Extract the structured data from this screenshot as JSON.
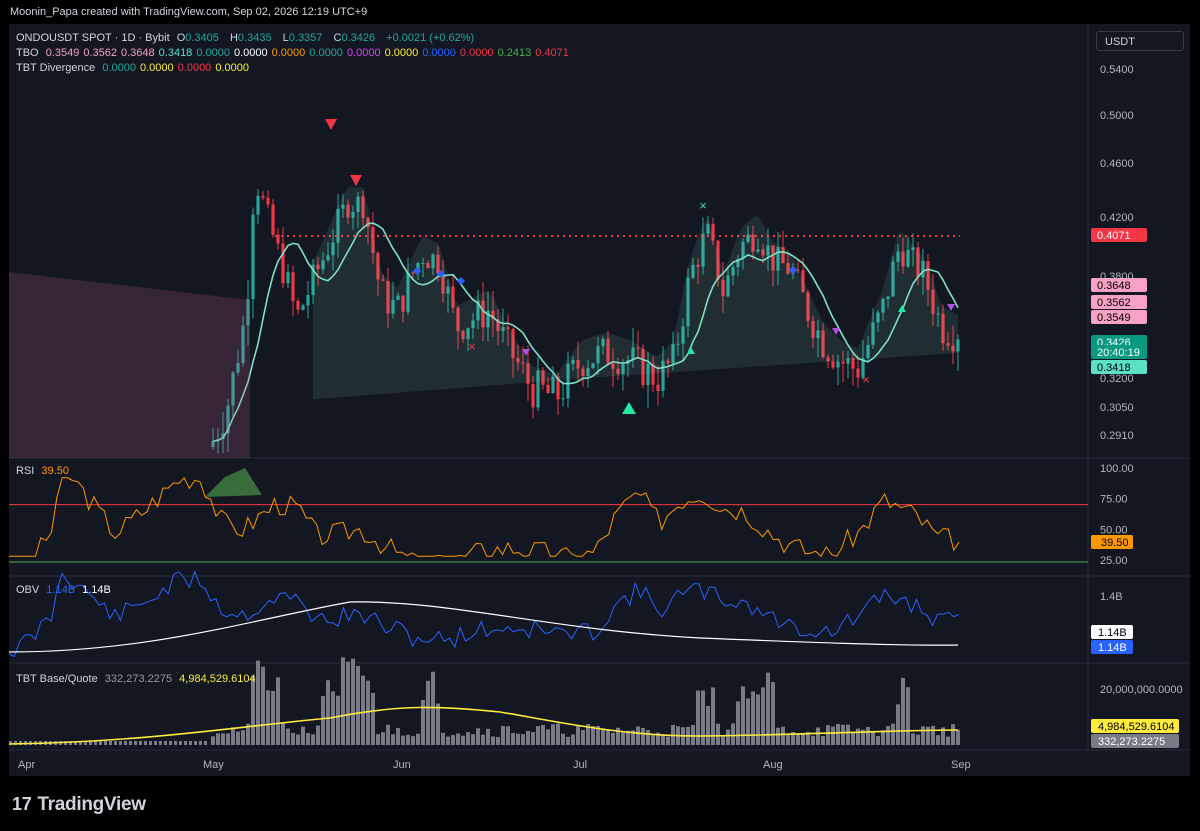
{
  "credit": "Moonin_Papa created with TradingView.com, Sep 02, 2026 12:19 UTC+9",
  "symbol_line": {
    "symbol": "ONDOUSDT SPOT · 1D · Bybit",
    "o_label": "O",
    "o": "0.3405",
    "h_label": "H",
    "h": "0.3435",
    "l_label": "L",
    "l": "0.3357",
    "c_label": "C",
    "c": "0.3426",
    "change": "+0.0021 (+0.62%)"
  },
  "tbo_line": {
    "name": "TBO",
    "values": [
      {
        "v": "0.3549",
        "color": "#f7a1c4"
      },
      {
        "v": "0.3562",
        "color": "#f7a1c4"
      },
      {
        "v": "0.3648",
        "color": "#f7a1c4"
      },
      {
        "v": "0.3418",
        "color": "#5ce1c4"
      },
      {
        "v": "0.0000",
        "color": "#26a69a"
      },
      {
        "v": "0.0000",
        "color": "#ffffff"
      },
      {
        "v": "0.0000",
        "color": "#ff9800"
      },
      {
        "v": "0.0000",
        "color": "#26a69a"
      },
      {
        "v": "0.0000",
        "color": "#e040fb"
      },
      {
        "v": "0.0000",
        "color": "#ffeb3b"
      },
      {
        "v": "0.0000",
        "color": "#2962ff"
      },
      {
        "v": "0.0000",
        "color": "#f23645"
      },
      {
        "v": "0.2413",
        "color": "#4caf50"
      },
      {
        "v": "0.4071",
        "color": "#f23645"
      }
    ]
  },
  "tbt_div_line": {
    "name": "TBT Divergence",
    "values": [
      {
        "v": "0.0000",
        "color": "#26a69a"
      },
      {
        "v": "0.0000",
        "color": "#ffeb3b"
      },
      {
        "v": "0.0000",
        "color": "#f23645"
      },
      {
        "v": "0.0000",
        "color": "#ffeb3b"
      }
    ]
  },
  "currency_button": "USDT",
  "price_axis_ticks": [
    "0.5400",
    "0.5000",
    "0.4600",
    "0.4200",
    "0.3800",
    "0.3200",
    "0.3050",
    "0.2910"
  ],
  "price_labels": [
    {
      "text": "0.4071",
      "bg": "#f23645",
      "fg": "#ffffff"
    },
    {
      "text": "0.3648",
      "bg": "#f7a1c4",
      "fg": "#000000"
    },
    {
      "text": "0.3562",
      "bg": "#f7a1c4",
      "fg": "#000000"
    },
    {
      "text": "0.3549",
      "bg": "#f7a1c4",
      "fg": "#000000"
    },
    {
      "text": "0.3426",
      "bg": "#089981",
      "fg": "#ffffff"
    },
    {
      "text": "20:40:19",
      "bg": "#089981",
      "fg": "#ffffff"
    },
    {
      "text": "0.3418",
      "bg": "#5ce1c4",
      "fg": "#000000"
    }
  ],
  "rsi": {
    "name": "RSI",
    "value": "39.50",
    "ticks": [
      "100.00",
      "75.00",
      "50.00",
      "25.00"
    ],
    "label": "39.50",
    "label_bg": "#ff9800"
  },
  "obv": {
    "name": "OBV",
    "v1": "1.14B",
    "v2": "1.14B",
    "ticks": [
      "1.4B"
    ],
    "labels": [
      {
        "text": "1.14B",
        "bg": "#ffffff",
        "fg": "#000000"
      },
      {
        "text": "1.14B",
        "bg": "#2962ff",
        "fg": "#ffffff"
      }
    ]
  },
  "tbt_bq": {
    "name": "TBT Base/Quote",
    "v1": "332,273.2275",
    "v2": "4,984,529.6104",
    "ticks": [
      "20,000,000.0000"
    ],
    "labels": [
      {
        "text": "4,984,529.6104",
        "bg": "#ffeb3b",
        "fg": "#000000"
      },
      {
        "text": "332,273.2275",
        "bg": "#787b86",
        "fg": "#ffffff"
      }
    ]
  },
  "x_axis_labels": [
    "Apr",
    "May",
    "Jun",
    "Jul",
    "Aug",
    "Sep"
  ],
  "brand": "TradingView",
  "chart_data": {
    "type": "candlestick",
    "symbol": "ONDOUSDT",
    "timeframe": "1D",
    "x_range": [
      "Apr",
      "Sep"
    ],
    "ylim": [
      0.285,
      0.56
    ],
    "resistance_level": 0.4071,
    "last_close": 0.3426,
    "rsi_levels": [
      75,
      25
    ],
    "rsi_last": 39.5
  }
}
